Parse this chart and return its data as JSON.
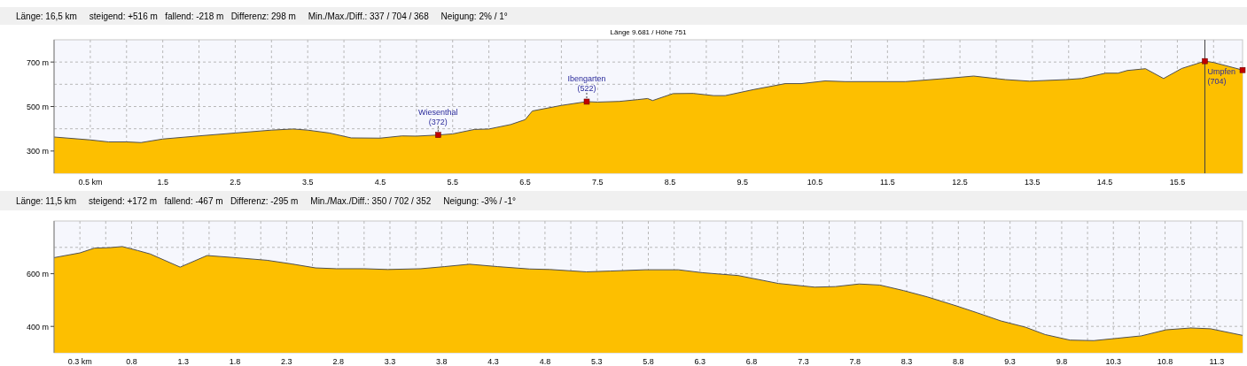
{
  "chart_data": [
    {
      "type": "area",
      "title": "Länge: 16,5 km     steigend: +516 m   fallend: -218 m   Differenz: 298 m     Min./Max./Diff.: 337 / 704 / 368     Neigung: 2% / 1°",
      "annotations": [
        "Länge 9.681 / Höhe 751",
        {
          "text": "Wiesenthal",
          "x": 5.3,
          "y": 372
        },
        {
          "text": "Ibengarten",
          "x": 7.35,
          "y": 522
        },
        {
          "text": "Umpfen",
          "x": 15.88,
          "y": 704
        }
      ],
      "xlim": [
        0,
        16.4
      ],
      "ylim": [
        200,
        800
      ],
      "xticks": [
        {
          "value": 0.5,
          "label": "0.5 km"
        },
        {
          "value": 1,
          "label": null
        },
        1.5,
        {
          "value": 2,
          "label": null
        },
        2.5,
        {
          "value": 3,
          "label": null
        },
        3.5,
        {
          "value": 4,
          "label": null
        },
        4.5,
        {
          "value": 5,
          "label": null
        },
        5.5,
        {
          "value": 6,
          "label": null
        },
        6.5,
        {
          "value": 7,
          "label": null
        },
        7.5,
        {
          "value": 8,
          "label": null
        },
        8.5,
        {
          "value": 9,
          "label": null
        },
        9.5,
        {
          "value": 10,
          "label": null
        },
        10.5,
        {
          "value": 11,
          "label": null
        },
        11.5,
        {
          "value": 12,
          "label": null
        },
        12.5,
        {
          "value": 13,
          "label": null
        },
        13.5,
        {
          "value": 14,
          "label": null
        },
        14.5,
        {
          "value": 15,
          "label": null
        },
        15.5,
        {
          "value": 16,
          "label": null
        }
      ],
      "yticks": [
        {
          "value": 300,
          "label": "300 m"
        },
        {
          "value": 400,
          "label": null
        },
        {
          "value": 500,
          "label": "500 m"
        },
        {
          "value": 600,
          "label": null
        },
        {
          "value": 700,
          "label": "700 m"
        }
      ],
      "grid": true,
      "ref_lines": [
        {
          "axis": "x",
          "value": 15.88,
          "color": "#404040"
        }
      ],
      "series": [
        {
          "color": "#fdbf00",
          "x": [
            0,
            0.5,
            0.75,
            1.0,
            1.2,
            1.5,
            2.0,
            2.5,
            3.0,
            3.3,
            3.5,
            3.8,
            4.1,
            4.5,
            4.8,
            5.0,
            5.3,
            5.5,
            5.8,
            6.0,
            6.3,
            6.5,
            6.6,
            7.0,
            7.35,
            7.5,
            7.8,
            8.05,
            8.19,
            8.26,
            8.54,
            8.82,
            9.1,
            9.26,
            9.65,
            10.09,
            10.31,
            10.64,
            10.92,
            11.75,
            12.3,
            12.69,
            13.13,
            13.46,
            13.96,
            14.18,
            14.51,
            14.68,
            14.81,
            15.06,
            15.31,
            15.56,
            15.88,
            16.0,
            16.4
          ],
          "values": [
            363,
            350,
            341,
            341,
            338,
            354,
            368,
            381,
            394,
            399,
            394,
            381,
            359,
            358,
            368,
            367,
            372,
            377,
            397,
            399,
            419,
            441,
            480,
            505,
            522,
            520,
            523,
            531,
            536,
            527,
            558,
            559,
            549,
            549,
            576,
            603,
            603,
            615,
            612,
            612,
            626,
            637,
            621,
            614,
            621,
            626,
            650,
            650,
            662,
            670,
            626,
            671,
            704,
            698,
            664
          ]
        },
        {
          "type": "scatter",
          "color": "#c00000",
          "marker": "square",
          "x": [
            5.3,
            7.35,
            15.88,
            16.4
          ],
          "values": [
            372,
            522,
            704,
            664
          ],
          "value_labels": [
            "(372)",
            "(522)",
            "(704)",
            null
          ]
        }
      ]
    },
    {
      "type": "area",
      "title": "Länge: 11,5 km     steigend: +172 m   fallend: -467 m   Differenz: -295 m     Min./Max./Diff.: 350 / 702 / 352     Neigung: -3% / -1°",
      "xlim": [
        0,
        11.5
      ],
      "ylim": [
        300,
        800
      ],
      "xticks": [
        {
          "value": 0.25,
          "label": "0.3 km"
        },
        {
          "value": 0.5,
          "label": null
        },
        {
          "value": 0.75,
          "label": "0.8"
        },
        {
          "value": 1,
          "label": null
        },
        {
          "value": 1.25,
          "label": "1.3"
        },
        {
          "value": 1.5,
          "label": null
        },
        {
          "value": 1.75,
          "label": "1.8"
        },
        {
          "value": 2,
          "label": null
        },
        {
          "value": 2.25,
          "label": "2.3"
        },
        {
          "value": 2.5,
          "label": null
        },
        {
          "value": 2.75,
          "label": "2.8"
        },
        {
          "value": 3,
          "label": null
        },
        {
          "value": 3.25,
          "label": "3.3"
        },
        {
          "value": 3.5,
          "label": null
        },
        {
          "value": 3.75,
          "label": "3.8"
        },
        {
          "value": 4,
          "label": null
        },
        {
          "value": 4.25,
          "label": "4.3"
        },
        {
          "value": 4.5,
          "label": null
        },
        {
          "value": 4.75,
          "label": "4.8"
        },
        {
          "value": 5,
          "label": null
        },
        {
          "value": 5.25,
          "label": "5.3"
        },
        {
          "value": 5.5,
          "label": null
        },
        {
          "value": 5.75,
          "label": "5.8"
        },
        {
          "value": 6,
          "label": null
        },
        {
          "value": 6.25,
          "label": "6.3"
        },
        {
          "value": 6.5,
          "label": null
        },
        {
          "value": 6.75,
          "label": "6.8"
        },
        {
          "value": 7,
          "label": null
        },
        {
          "value": 7.25,
          "label": "7.3"
        },
        {
          "value": 7.5,
          "label": null
        },
        {
          "value": 7.75,
          "label": "7.8"
        },
        {
          "value": 8,
          "label": null
        },
        {
          "value": 8.25,
          "label": "8.3"
        },
        {
          "value": 8.5,
          "label": null
        },
        {
          "value": 8.75,
          "label": "8.8"
        },
        {
          "value": 9,
          "label": null
        },
        {
          "value": 9.25,
          "label": "9.3"
        },
        {
          "value": 9.5,
          "label": null
        },
        {
          "value": 9.75,
          "label": "9.8"
        },
        {
          "value": 10,
          "label": null
        },
        {
          "value": 10.25,
          "label": "10.3"
        },
        {
          "value": 10.5,
          "label": null
        },
        {
          "value": 10.75,
          "label": "10.8"
        },
        {
          "value": 11,
          "label": null
        },
        {
          "value": 11.25,
          "label": "11.3"
        }
      ],
      "yticks": [
        {
          "value": 400,
          "label": "400 m"
        },
        {
          "value": 500,
          "label": null
        },
        {
          "value": 600,
          "label": "600 m"
        },
        {
          "value": 700,
          "label": null
        }
      ],
      "grid": true,
      "series": [
        {
          "color": "#fdbf00",
          "x": [
            0,
            0.25,
            0.39,
            0.54,
            0.66,
            0.81,
            0.93,
            1.22,
            1.48,
            1.75,
            2.06,
            2.3,
            2.53,
            2.73,
            3.0,
            3.23,
            3.55,
            3.78,
            4.02,
            4.29,
            4.6,
            4.8,
            5.15,
            5.38,
            5.72,
            6.04,
            6.27,
            6.62,
            7.01,
            7.36,
            7.56,
            7.79,
            7.99,
            8.22,
            8.45,
            8.73,
            8.93,
            9.16,
            9.4,
            9.59,
            9.83,
            10.06,
            10.29,
            10.52,
            10.76,
            11.0,
            11.19,
            11.5
          ],
          "values": [
            661,
            679,
            697,
            699,
            703,
            688,
            675,
            625,
            669,
            661,
            651,
            637,
            622,
            619,
            619,
            616,
            619,
            627,
            636,
            627,
            618,
            616,
            607,
            610,
            615,
            615,
            604,
            593,
            563,
            549,
            551,
            561,
            557,
            536,
            512,
            478,
            452,
            421,
            397,
            369,
            348,
            346,
            355,
            364,
            387,
            394,
            391,
            366
          ]
        }
      ]
    }
  ]
}
